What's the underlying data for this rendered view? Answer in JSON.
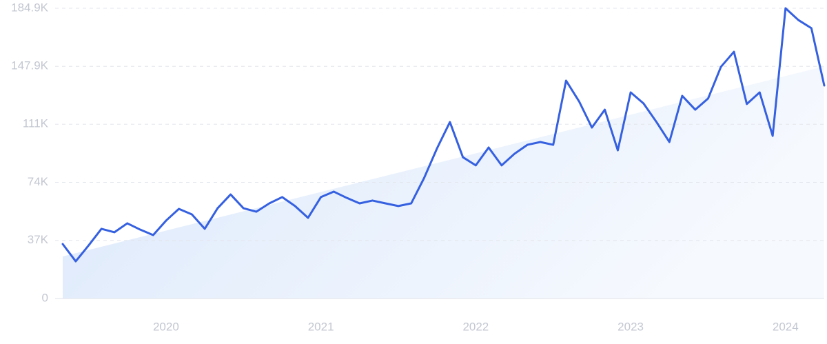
{
  "chart_data": {
    "type": "line",
    "x": [
      2019.333,
      2019.417,
      2019.5,
      2019.583,
      2019.667,
      2019.75,
      2019.833,
      2019.917,
      2020,
      2020.083,
      2020.167,
      2020.25,
      2020.333,
      2020.417,
      2020.5,
      2020.583,
      2020.667,
      2020.75,
      2020.833,
      2020.917,
      2021,
      2021.083,
      2021.167,
      2021.25,
      2021.333,
      2021.417,
      2021.5,
      2021.583,
      2021.667,
      2021.75,
      2021.833,
      2021.917,
      2022,
      2022.083,
      2022.167,
      2022.25,
      2022.333,
      2022.417,
      2022.5,
      2022.583,
      2022.667,
      2022.75,
      2022.833,
      2022.917,
      2023,
      2023.083,
      2023.167,
      2023.25,
      2023.333,
      2023.417,
      2023.5,
      2023.583,
      2023.667,
      2023.75,
      2023.833,
      2023.917,
      2024,
      2024.083,
      2024.167,
      2024.25
    ],
    "series": [
      {
        "color": "#3560e0",
        "values": [
          34.7,
          23.7,
          33.8,
          44.4,
          42.2,
          47.9,
          43.9,
          40.4,
          49.6,
          57.1,
          53.6,
          44.4,
          57.5,
          66.3,
          57.5,
          55.3,
          60.6,
          64.6,
          58.9,
          51.4,
          64.6,
          68.1,
          64.1,
          60.6,
          62.4,
          60.6,
          58.9,
          60.6,
          76.9,
          95.7,
          112.4,
          90.0,
          84.8,
          96.2,
          84.8,
          92.2,
          97.9,
          99.7,
          97.9,
          138.8,
          125.6,
          108.9,
          120.3,
          94.4,
          131.3,
          124.3,
          112.4,
          99.7,
          129.1,
          120.3,
          127.4,
          147.6,
          157.2,
          123.9,
          131.3,
          103.6,
          184.9,
          177.4,
          172.2,
          135.7
        ]
      }
    ],
    "trend": {
      "x": [
        2019.333,
        2024.25
      ],
      "values": [
        26.8,
        147.9
      ],
      "color": "#dbe8fb"
    },
    "xlim": [
      2019.333,
      2024.25
    ],
    "xticks": [
      2020,
      2021,
      2022,
      2023,
      2024
    ],
    "ylim": [
      0,
      184.9
    ],
    "yticks": [
      0,
      {
        "value": 37,
        "label": "37K"
      },
      {
        "value": 74,
        "label": "74K"
      },
      {
        "value": 111,
        "label": "111K"
      },
      {
        "value": 147.9,
        "label": "147.9K"
      },
      {
        "value": 184.9,
        "label": "184.9K"
      }
    ],
    "grid": true
  }
}
